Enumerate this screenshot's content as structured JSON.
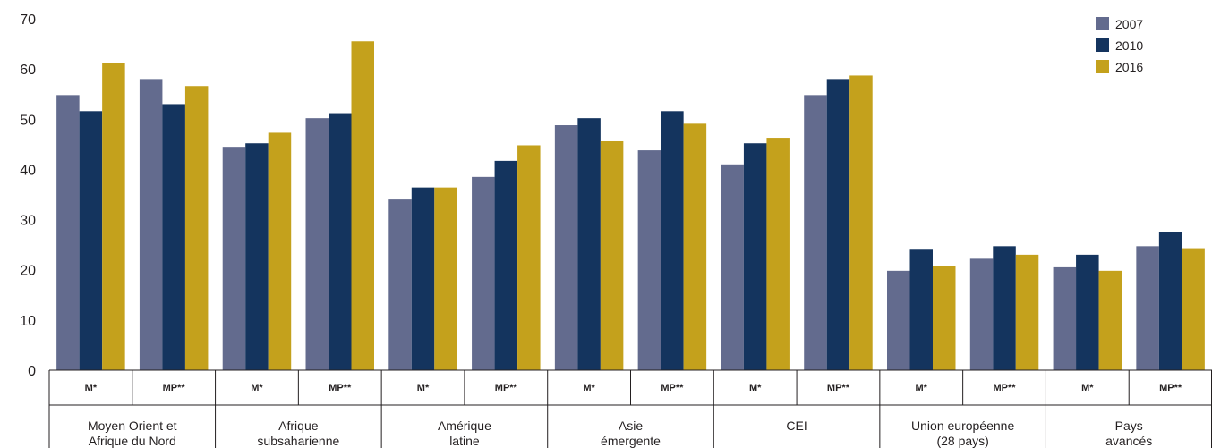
{
  "chart_data": {
    "type": "bar",
    "ylim": [
      0,
      70
    ],
    "yticks": [
      0,
      10,
      20,
      30,
      40,
      50,
      60,
      70
    ],
    "grid": false,
    "legend_position": "top-right",
    "groups": [
      {
        "label": "Moyen Orient et Afrique du Nord",
        "lines": [
          "Moyen Orient et",
          "Afrique du Nord"
        ]
      },
      {
        "label": "Afrique subsaharienne",
        "lines": [
          "Afrique",
          "subsaharienne"
        ]
      },
      {
        "label": "Amérique latine",
        "lines": [
          "Amérique",
          "latine"
        ]
      },
      {
        "label": "Asie émergente",
        "lines": [
          "Asie",
          "émergente"
        ]
      },
      {
        "label": "CEI",
        "lines": [
          "CEI"
        ]
      },
      {
        "label": "Union européenne (28 pays)",
        "lines": [
          "Union européenne",
          "(28 pays)"
        ]
      },
      {
        "label": "Pays avancés",
        "lines": [
          "Pays",
          "avancés"
        ]
      }
    ],
    "categories": [
      "M*",
      "MP**",
      "M*",
      "MP**",
      "M*",
      "MP**",
      "M*",
      "MP**",
      "M*",
      "MP**",
      "M*",
      "MP**",
      "M*",
      "MP**"
    ],
    "series": [
      {
        "name": "2007",
        "color": "#636b8e",
        "values": [
          54.8,
          58.0,
          44.5,
          50.2,
          34.0,
          38.5,
          48.8,
          43.8,
          41.0,
          54.8,
          19.8,
          22.2,
          20.5,
          24.7
        ]
      },
      {
        "name": "2010",
        "color": "#14345e",
        "values": [
          51.6,
          53.0,
          45.2,
          51.2,
          36.4,
          41.7,
          50.2,
          51.6,
          45.2,
          58.0,
          24.0,
          24.7,
          23.0,
          27.6
        ]
      },
      {
        "name": "2016",
        "color": "#c4a11c",
        "values": [
          61.2,
          56.6,
          47.3,
          65.5,
          36.4,
          44.8,
          45.6,
          49.1,
          46.3,
          58.7,
          20.8,
          23.0,
          19.8,
          24.3
        ]
      }
    ]
  }
}
